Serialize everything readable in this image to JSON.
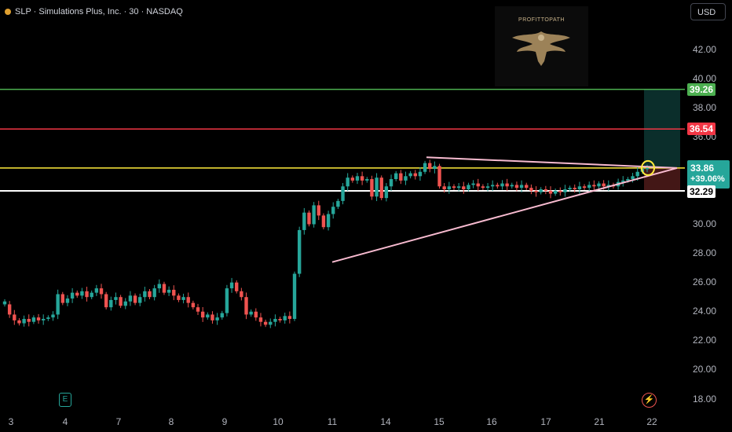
{
  "header": {
    "symbol_line": "SLP · Simulations Plus, Inc. · 30 · NASDAQ",
    "currency_button": "USD"
  },
  "logo": {
    "text": "PROFITTOPATH",
    "icon": "eagle-icon"
  },
  "colors": {
    "up": "#26a69a",
    "down": "#ef5350",
    "green_line": "#4caf50",
    "red_line": "#f23645",
    "yellow_line": "#ffeb3b",
    "white_line": "#ffffff",
    "trendline": "#f8bbd0"
  },
  "price_axis": {
    "ticks": [
      "42.00",
      "40.00",
      "38.00",
      "36.00",
      "30.00",
      "28.00",
      "26.00",
      "24.00",
      "22.00",
      "20.00",
      "18.00"
    ],
    "tags": {
      "target": "39.26",
      "resistance": "36.54",
      "last_price": "33.86",
      "change_pct": "+39.06%",
      "support": "32.29"
    }
  },
  "time_axis": {
    "ticks": [
      "3",
      "4",
      "7",
      "8",
      "9",
      "10",
      "11",
      "14",
      "15",
      "16",
      "17",
      "21",
      "22"
    ]
  },
  "markers": {
    "earnings": "E",
    "bolt": "⚡"
  },
  "chart_data": {
    "type": "candlestick",
    "symbol": "SLP",
    "interval": "30",
    "ylim": [
      17.5,
      44
    ],
    "levels": [
      {
        "price": 39.26,
        "color": "#4caf50"
      },
      {
        "price": 36.54,
        "color": "#f23645"
      },
      {
        "price": 33.86,
        "color": "#ffeb3b"
      },
      {
        "price": 32.29,
        "color": "#ffffff"
      }
    ],
    "candles": [
      {
        "o": 24.5,
        "c": 24.7
      },
      {
        "o": 24.5,
        "c": 23.8
      },
      {
        "o": 23.8,
        "c": 23.4
      },
      {
        "o": 23.4,
        "c": 23.2
      },
      {
        "o": 23.2,
        "c": 23.5
      },
      {
        "o": 23.5,
        "c": 23.3
      },
      {
        "o": 23.3,
        "c": 23.6
      },
      {
        "o": 23.6,
        "c": 23.4
      },
      {
        "o": 23.4,
        "c": 23.5
      },
      {
        "o": 23.5,
        "c": 23.6
      },
      {
        "o": 23.6,
        "c": 23.8
      },
      {
        "o": 23.8,
        "c": 25.2
      },
      {
        "o": 25.2,
        "c": 24.6
      },
      {
        "o": 24.6,
        "c": 24.9
      },
      {
        "o": 24.9,
        "c": 25.3
      },
      {
        "o": 25.3,
        "c": 25.1
      },
      {
        "o": 25.1,
        "c": 25.4
      },
      {
        "o": 25.4,
        "c": 25.0
      },
      {
        "o": 25.0,
        "c": 25.3
      },
      {
        "o": 25.3,
        "c": 25.6
      },
      {
        "o": 25.6,
        "c": 25.2
      },
      {
        "o": 25.2,
        "c": 24.3
      },
      {
        "o": 24.3,
        "c": 24.8
      },
      {
        "o": 24.8,
        "c": 25.0
      },
      {
        "o": 25.0,
        "c": 24.4
      },
      {
        "o": 24.4,
        "c": 24.7
      },
      {
        "o": 24.7,
        "c": 25.1
      },
      {
        "o": 25.1,
        "c": 24.6
      },
      {
        "o": 24.6,
        "c": 25.0
      },
      {
        "o": 25.0,
        "c": 25.4
      },
      {
        "o": 25.4,
        "c": 25.0
      },
      {
        "o": 25.0,
        "c": 25.6
      },
      {
        "o": 25.6,
        "c": 25.9
      },
      {
        "o": 25.9,
        "c": 25.3
      },
      {
        "o": 25.3,
        "c": 25.5
      },
      {
        "o": 25.5,
        "c": 25.1
      },
      {
        "o": 25.1,
        "c": 24.8
      },
      {
        "o": 24.8,
        "c": 25.0
      },
      {
        "o": 25.0,
        "c": 24.6
      },
      {
        "o": 24.6,
        "c": 24.3
      },
      {
        "o": 24.3,
        "c": 24.0
      },
      {
        "o": 24.0,
        "c": 23.6
      },
      {
        "o": 23.6,
        "c": 23.8
      },
      {
        "o": 23.8,
        "c": 23.4
      },
      {
        "o": 23.4,
        "c": 23.6
      },
      {
        "o": 23.6,
        "c": 23.9
      },
      {
        "o": 23.9,
        "c": 25.6
      },
      {
        "o": 25.6,
        "c": 26.0
      },
      {
        "o": 26.0,
        "c": 25.4
      },
      {
        "o": 25.4,
        "c": 25.0
      },
      {
        "o": 25.0,
        "c": 23.8
      },
      {
        "o": 23.8,
        "c": 24.0
      },
      {
        "o": 24.0,
        "c": 23.6
      },
      {
        "o": 23.6,
        "c": 23.3
      },
      {
        "o": 23.3,
        "c": 23.1
      },
      {
        "o": 23.1,
        "c": 23.3
      },
      {
        "o": 23.3,
        "c": 23.5
      },
      {
        "o": 23.5,
        "c": 23.4
      },
      {
        "o": 23.4,
        "c": 23.7
      },
      {
        "o": 23.7,
        "c": 23.5
      },
      {
        "o": 23.5,
        "c": 26.6
      },
      {
        "o": 26.6,
        "c": 29.6
      },
      {
        "o": 29.6,
        "c": 30.8
      },
      {
        "o": 30.8,
        "c": 30.0
      },
      {
        "o": 30.0,
        "c": 31.3
      },
      {
        "o": 31.3,
        "c": 30.6
      },
      {
        "o": 30.6,
        "c": 29.8
      },
      {
        "o": 29.8,
        "c": 30.7
      },
      {
        "o": 30.7,
        "c": 31.2
      },
      {
        "o": 31.2,
        "c": 31.6
      },
      {
        "o": 31.6,
        "c": 32.6
      },
      {
        "o": 32.6,
        "c": 33.2
      },
      {
        "o": 33.2,
        "c": 33.0
      },
      {
        "o": 33.0,
        "c": 33.3
      },
      {
        "o": 33.3,
        "c": 33.0
      },
      {
        "o": 33.0,
        "c": 33.1
      },
      {
        "o": 33.1,
        "c": 31.9
      },
      {
        "o": 31.9,
        "c": 33.2
      },
      {
        "o": 33.2,
        "c": 31.8
      },
      {
        "o": 31.8,
        "c": 32.6
      },
      {
        "o": 32.6,
        "c": 33.1
      },
      {
        "o": 33.1,
        "c": 33.5
      },
      {
        "o": 33.5,
        "c": 33.0
      },
      {
        "o": 33.0,
        "c": 33.3
      },
      {
        "o": 33.3,
        "c": 33.5
      },
      {
        "o": 33.5,
        "c": 33.3
      },
      {
        "o": 33.3,
        "c": 33.6
      },
      {
        "o": 33.6,
        "c": 34.2
      },
      {
        "o": 34.2,
        "c": 33.8
      },
      {
        "o": 33.8,
        "c": 34.0
      },
      {
        "o": 34.0,
        "c": 32.6
      },
      {
        "o": 32.6,
        "c": 32.4
      },
      {
        "o": 32.4,
        "c": 32.6
      },
      {
        "o": 32.6,
        "c": 32.5
      },
      {
        "o": 32.5,
        "c": 32.6
      },
      {
        "o": 32.6,
        "c": 32.4
      },
      {
        "o": 32.4,
        "c": 32.7
      },
      {
        "o": 32.7,
        "c": 32.8
      },
      {
        "o": 32.8,
        "c": 32.6
      },
      {
        "o": 32.6,
        "c": 32.5
      },
      {
        "o": 32.5,
        "c": 32.6
      },
      {
        "o": 32.6,
        "c": 32.7
      },
      {
        "o": 32.7,
        "c": 32.6
      },
      {
        "o": 32.6,
        "c": 32.8
      },
      {
        "o": 32.8,
        "c": 32.6
      },
      {
        "o": 32.6,
        "c": 32.7
      },
      {
        "o": 32.7,
        "c": 32.5
      },
      {
        "o": 32.5,
        "c": 32.7
      },
      {
        "o": 32.7,
        "c": 32.5
      },
      {
        "o": 32.5,
        "c": 32.3
      },
      {
        "o": 32.3,
        "c": 32.2
      },
      {
        "o": 32.2,
        "c": 32.4
      },
      {
        "o": 32.4,
        "c": 32.3
      },
      {
        "o": 32.3,
        "c": 32.1
      },
      {
        "o": 32.1,
        "c": 32.3
      },
      {
        "o": 32.3,
        "c": 32.2
      },
      {
        "o": 32.2,
        "c": 32.4
      },
      {
        "o": 32.4,
        "c": 32.5
      },
      {
        "o": 32.5,
        "c": 32.4
      },
      {
        "o": 32.4,
        "c": 32.6
      },
      {
        "o": 32.6,
        "c": 32.5
      },
      {
        "o": 32.5,
        "c": 32.7
      },
      {
        "o": 32.7,
        "c": 32.6
      },
      {
        "o": 32.6,
        "c": 32.8
      },
      {
        "o": 32.8,
        "c": 32.6
      },
      {
        "o": 32.6,
        "c": 32.7
      },
      {
        "o": 32.7,
        "c": 32.6
      },
      {
        "o": 32.6,
        "c": 32.9
      },
      {
        "o": 32.9,
        "c": 33.0
      },
      {
        "o": 33.0,
        "c": 33.1
      },
      {
        "o": 33.1,
        "c": 33.3
      },
      {
        "o": 33.3,
        "c": 33.6
      },
      {
        "o": 33.6,
        "c": 33.8
      },
      {
        "o": 33.8,
        "c": 33.86
      }
    ]
  }
}
